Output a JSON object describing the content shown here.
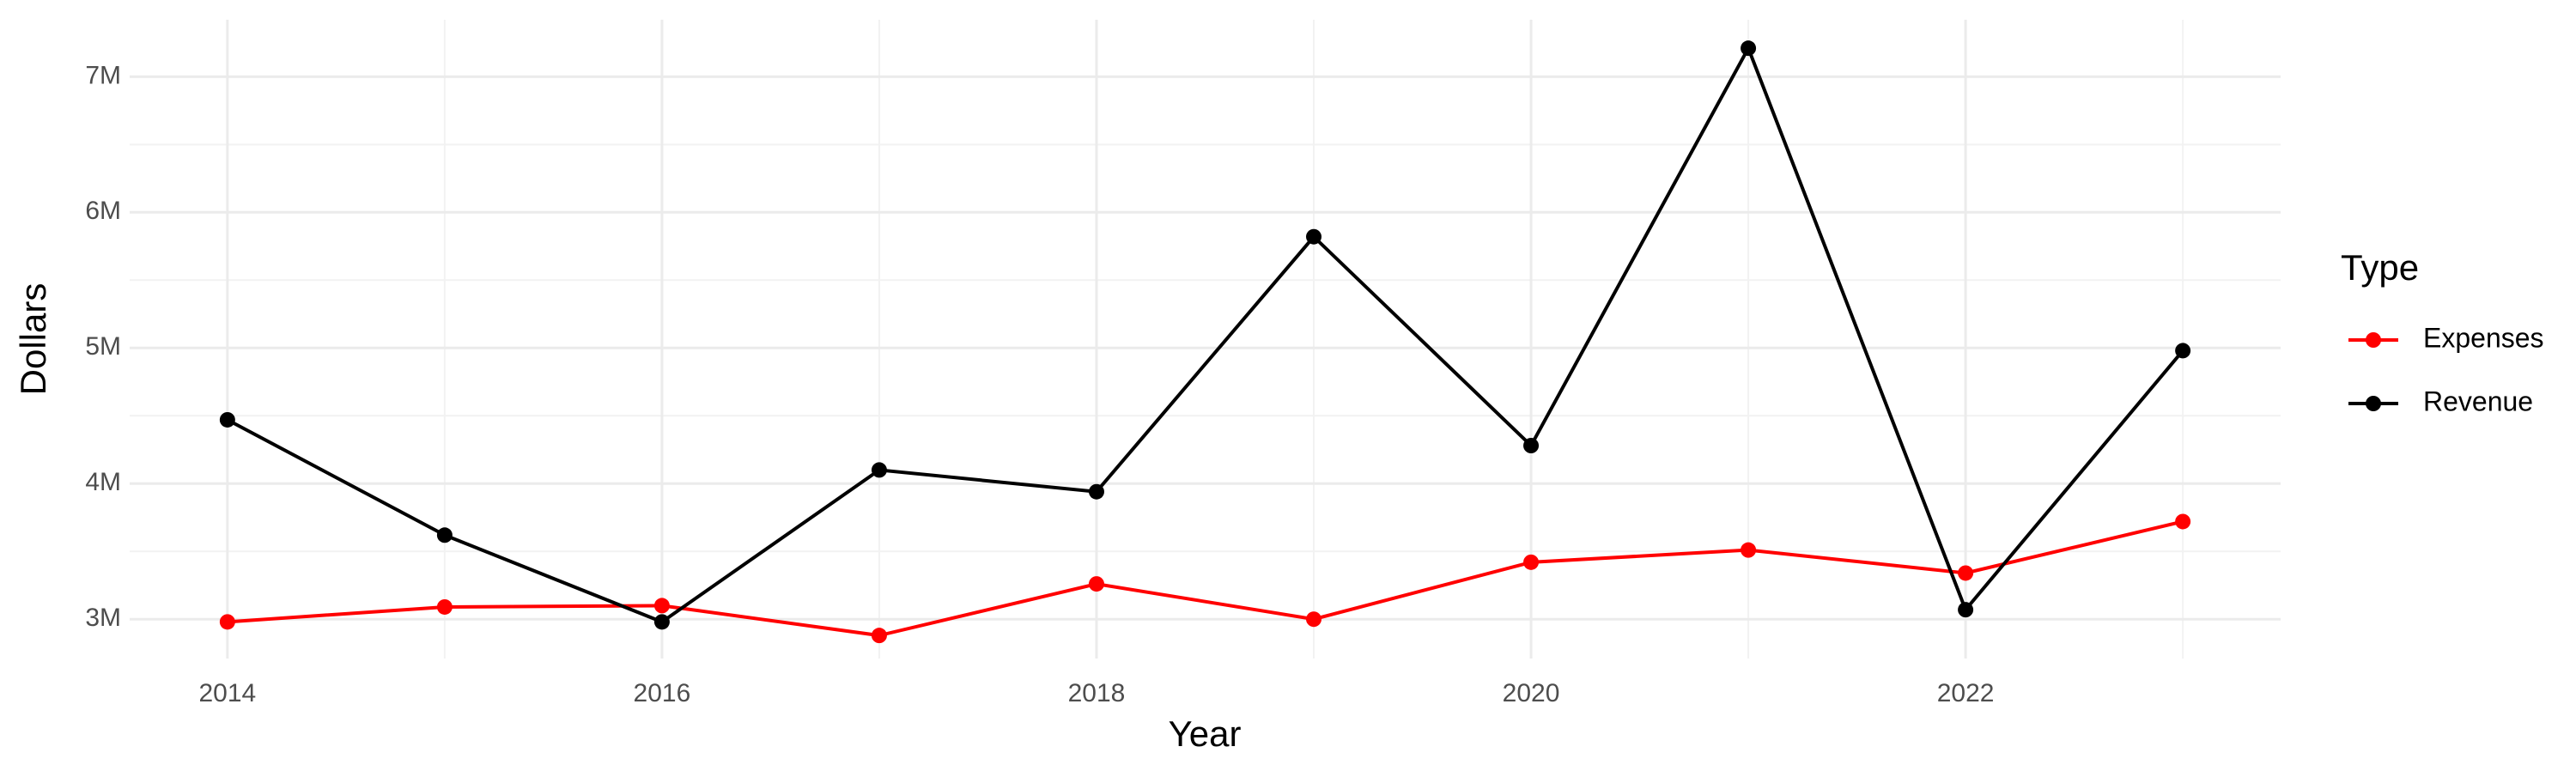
{
  "chart_data": {
    "type": "line",
    "x_label": "Year",
    "y_label": "Dollars",
    "legend_title": "Type",
    "x": [
      2014,
      2015,
      2016,
      2017,
      2018,
      2019,
      2020,
      2021,
      2022,
      2023
    ],
    "series": [
      {
        "name": "Expenses",
        "color": "#ff0000",
        "values": [
          2980000,
          3090000,
          3100000,
          2880000,
          3260000,
          3000000,
          3420000,
          3510000,
          3340000,
          3720000
        ]
      },
      {
        "name": "Revenue",
        "color": "#000000",
        "values": [
          4470000,
          3620000,
          2980000,
          4100000,
          3940000,
          5820000,
          4280000,
          7210000,
          3070000,
          4980000
        ]
      }
    ],
    "xlim": [
      2013.55,
      2023.45
    ],
    "xticks": [
      2014,
      2016,
      2018,
      2020,
      2022
    ],
    "x_minor_ticks": [
      2015,
      2017,
      2019,
      2021,
      2023
    ],
    "ylim": [
      2710000,
      7420000
    ],
    "yticks": [
      {
        "value": 3000000,
        "label": "3M"
      },
      {
        "value": 4000000,
        "label": "4M"
      },
      {
        "value": 5000000,
        "label": "5M"
      },
      {
        "value": 6000000,
        "label": "6M"
      },
      {
        "value": 7000000,
        "label": "7M"
      }
    ],
    "y_minor_ticks": [
      3500000,
      4500000,
      5500000,
      6500000
    ],
    "grid": true,
    "legend_position": "right"
  }
}
